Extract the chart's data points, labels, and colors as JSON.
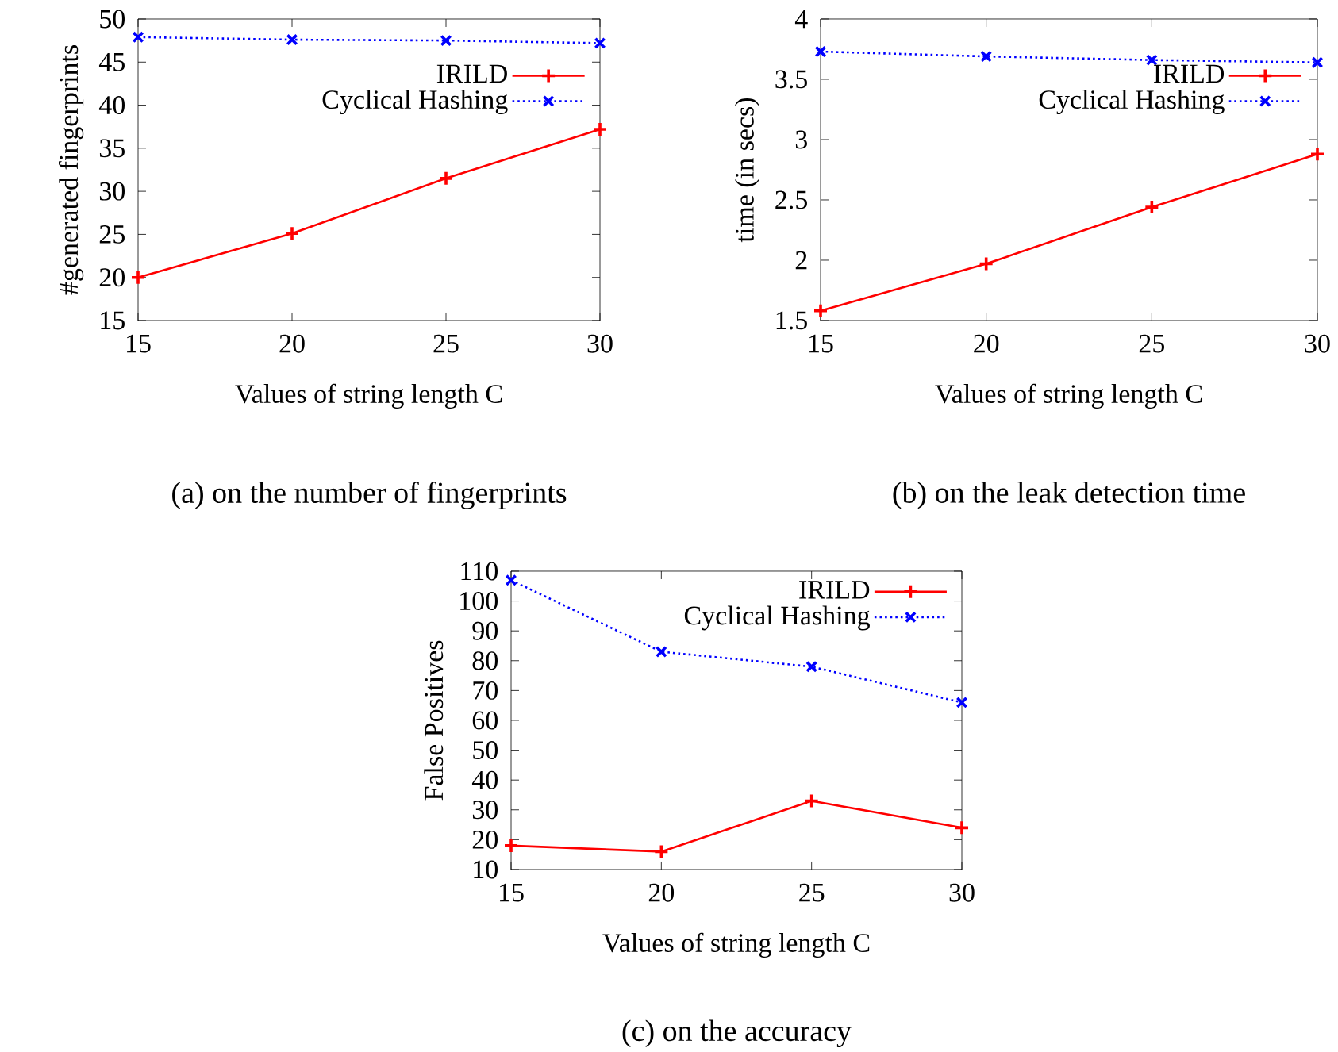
{
  "chart_data": [
    {
      "type": "line",
      "xlabel": "Values of string length C",
      "ylabel": "#generated fingerprints",
      "annotations": [
        "(a)  on the number of fingerprints"
      ],
      "x": [
        15,
        20,
        25,
        30
      ],
      "xlim": [
        15,
        30
      ],
      "xticks": [
        15,
        20,
        25,
        30
      ],
      "ylim": [
        15,
        50
      ],
      "yticks": [
        15,
        20,
        25,
        30,
        35,
        40,
        45,
        50
      ],
      "legend": "top right",
      "grid": false,
      "series": [
        {
          "name": "IRILD",
          "color": "#ff0000",
          "marker": "plus",
          "line_style": "solid",
          "values": [
            20,
            25.1,
            31.5,
            37.2
          ]
        },
        {
          "name": "Cyclical Hashing",
          "color": "#0000ff",
          "marker": "cross",
          "line_style": "dotted",
          "values": [
            47.9,
            47.6,
            47.5,
            47.2
          ]
        }
      ]
    },
    {
      "type": "line",
      "xlabel": "Values of string length C",
      "ylabel": "time (in secs)",
      "annotations": [
        "(b)  on the leak detection time"
      ],
      "x": [
        15,
        20,
        25,
        30
      ],
      "xlim": [
        15,
        30
      ],
      "xticks": [
        15,
        20,
        25,
        30
      ],
      "ylim": [
        1.5,
        4
      ],
      "yticks": [
        1.5,
        2,
        2.5,
        3,
        3.5,
        4
      ],
      "legend": "top right",
      "grid": false,
      "series": [
        {
          "name": "IRILD",
          "color": "#ff0000",
          "marker": "plus",
          "line_style": "solid",
          "values": [
            1.58,
            1.97,
            2.44,
            2.88
          ]
        },
        {
          "name": "Cyclical Hashing",
          "color": "#0000ff",
          "marker": "cross",
          "line_style": "dotted",
          "values": [
            3.73,
            3.69,
            3.66,
            3.64
          ]
        }
      ]
    },
    {
      "type": "line",
      "xlabel": "Values of string length C",
      "ylabel": "False Positives",
      "annotations": [
        "(c)  on the accuracy"
      ],
      "x": [
        15,
        20,
        25,
        30
      ],
      "xlim": [
        15,
        30
      ],
      "xticks": [
        15,
        20,
        25,
        30
      ],
      "ylim": [
        10,
        110
      ],
      "yticks": [
        10,
        20,
        30,
        40,
        50,
        60,
        70,
        80,
        90,
        100,
        110
      ],
      "legend": "top right",
      "grid": false,
      "series": [
        {
          "name": "IRILD",
          "color": "#ff0000",
          "marker": "plus",
          "line_style": "solid",
          "values": [
            18,
            16,
            33,
            24
          ]
        },
        {
          "name": "Cyclical Hashing",
          "color": "#0000ff",
          "marker": "cross",
          "line_style": "dotted",
          "values": [
            107,
            83,
            78,
            66
          ]
        }
      ]
    }
  ]
}
